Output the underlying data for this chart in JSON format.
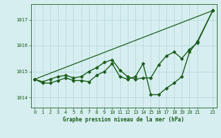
{
  "title": "Graphe pression niveau de la mer (hPa)",
  "bg_color": "#d6eef0",
  "grid_color": "#b8d8dc",
  "line_color": "#1a5c1a",
  "xlim": [
    -0.5,
    23.5
  ],
  "ylim": [
    1013.6,
    1017.6
  ],
  "yticks": [
    1014,
    1015,
    1016,
    1017
  ],
  "xticks": [
    0,
    1,
    2,
    3,
    4,
    5,
    6,
    7,
    8,
    9,
    10,
    11,
    12,
    13,
    14,
    15,
    16,
    17,
    18,
    19,
    20,
    21,
    23
  ],
  "series": [
    {
      "x": [
        0,
        23
      ],
      "y": [
        1014.7,
        1017.35
      ],
      "marker": null,
      "markersize": 0,
      "linewidth": 0.9
    },
    {
      "x": [
        0,
        1,
        2,
        3,
        4,
        5,
        6,
        7,
        8,
        9,
        10,
        11,
        12,
        13,
        14,
        15,
        16,
        17,
        18,
        19,
        20,
        21,
        23
      ],
      "y": [
        1014.7,
        1014.6,
        1014.7,
        1014.8,
        1014.85,
        1014.75,
        1014.8,
        1015.0,
        1015.15,
        1015.35,
        1015.45,
        1015.05,
        1014.8,
        1014.7,
        1014.75,
        1014.75,
        1015.25,
        1015.6,
        1015.75,
        1015.5,
        1015.85,
        1016.1,
        1017.35
      ],
      "marker": "D",
      "markersize": 2.5,
      "linewidth": 1.0
    },
    {
      "x": [
        0,
        1,
        2,
        3,
        4,
        5,
        6,
        7,
        8,
        9,
        10,
        11,
        12,
        13,
        14,
        15,
        16,
        17,
        18,
        19,
        20,
        21,
        23
      ],
      "y": [
        1014.7,
        1014.55,
        1014.55,
        1014.65,
        1014.75,
        1014.65,
        1014.65,
        1014.6,
        1014.85,
        1015.0,
        1015.3,
        1014.8,
        1014.7,
        1014.8,
        1015.3,
        1014.1,
        1014.1,
        1014.35,
        1014.55,
        1014.8,
        1015.75,
        1016.15,
        1017.35
      ],
      "marker": "D",
      "markersize": 2.5,
      "linewidth": 1.0
    }
  ]
}
